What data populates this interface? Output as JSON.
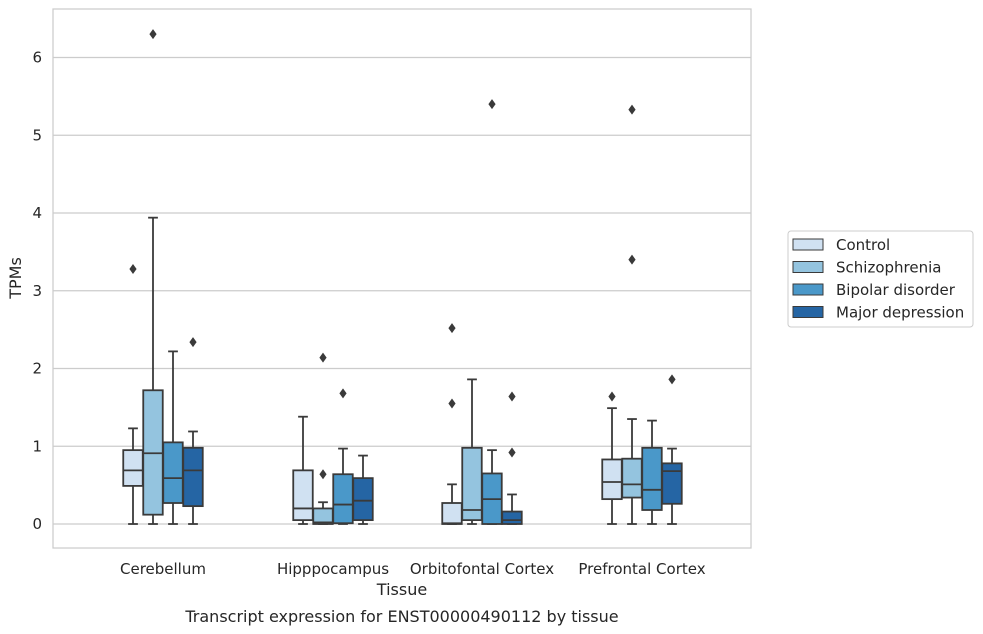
{
  "caption": "Transcript expression for ENST00000490112 by tissue",
  "chart_data": {
    "type": "box",
    "xlabel": "Tissue",
    "ylabel": "TPMs",
    "ylim": [
      -0.3,
      6.6
    ],
    "yticks": [
      0,
      1,
      2,
      3,
      4,
      5,
      6
    ],
    "grid": "horizontal",
    "legend_position": "right",
    "categories": [
      "Cerebellum",
      "Hipppocampus",
      "Orbitofontal Cortex",
      "Prefrontal Cortex"
    ],
    "series": [
      {
        "name": "Control",
        "color": "#d0e1f2",
        "boxes": [
          {
            "whislo": 0,
            "q1": 0.49,
            "med": 0.69,
            "q3": 0.95,
            "whishi": 1.23,
            "fliers": [
              3.28
            ]
          },
          {
            "whislo": 0,
            "q1": 0.05,
            "med": 0.2,
            "q3": 0.69,
            "whishi": 1.38,
            "fliers": []
          },
          {
            "whislo": 0,
            "q1": 0,
            "med": 0.01,
            "q3": 0.27,
            "whishi": 0.51,
            "fliers": [
              1.55,
              2.52
            ]
          },
          {
            "whislo": 0,
            "q1": 0.32,
            "med": 0.54,
            "q3": 0.83,
            "whishi": 1.49,
            "fliers": [
              1.64
            ]
          }
        ]
      },
      {
        "name": "Schizophrenia",
        "color": "#94c4df",
        "boxes": [
          {
            "whislo": 0,
            "q1": 0.12,
            "med": 0.91,
            "q3": 1.72,
            "whishi": 3.94,
            "fliers": [
              6.3
            ]
          },
          {
            "whislo": 0,
            "q1": 0,
            "med": 0.02,
            "q3": 0.2,
            "whishi": 0.28,
            "fliers": [
              0.64,
              2.14
            ]
          },
          {
            "whislo": 0,
            "q1": 0.05,
            "med": 0.18,
            "q3": 0.98,
            "whishi": 1.86,
            "fliers": []
          },
          {
            "whislo": 0,
            "q1": 0.34,
            "med": 0.51,
            "q3": 0.84,
            "whishi": 1.35,
            "fliers": [
              3.4,
              5.33
            ]
          }
        ]
      },
      {
        "name": "Bipolar disorder",
        "color": "#4a98c9",
        "boxes": [
          {
            "whislo": 0,
            "q1": 0.27,
            "med": 0.59,
            "q3": 1.05,
            "whishi": 2.22,
            "fliers": []
          },
          {
            "whislo": 0,
            "q1": 0.01,
            "med": 0.25,
            "q3": 0.64,
            "whishi": 0.97,
            "fliers": [
              1.68
            ]
          },
          {
            "whislo": 0,
            "q1": 0,
            "med": 0.32,
            "q3": 0.65,
            "whishi": 0.95,
            "fliers": [
              5.4
            ]
          },
          {
            "whislo": 0,
            "q1": 0.18,
            "med": 0.44,
            "q3": 0.98,
            "whishi": 1.33,
            "fliers": []
          }
        ]
      },
      {
        "name": "Major depression",
        "color": "#2565a4",
        "boxes": [
          {
            "whislo": 0,
            "q1": 0.23,
            "med": 0.69,
            "q3": 0.98,
            "whishi": 1.19,
            "fliers": [
              2.34
            ]
          },
          {
            "whislo": 0,
            "q1": 0.05,
            "med": 0.3,
            "q3": 0.59,
            "whishi": 0.88,
            "fliers": []
          },
          {
            "whislo": 0,
            "q1": 0,
            "med": 0.05,
            "q3": 0.16,
            "whishi": 0.38,
            "fliers": [
              0.92,
              1.64
            ]
          },
          {
            "whislo": 0,
            "q1": 0.26,
            "med": 0.68,
            "q3": 0.78,
            "whishi": 0.97,
            "fliers": [
              1.86
            ]
          }
        ]
      }
    ]
  }
}
